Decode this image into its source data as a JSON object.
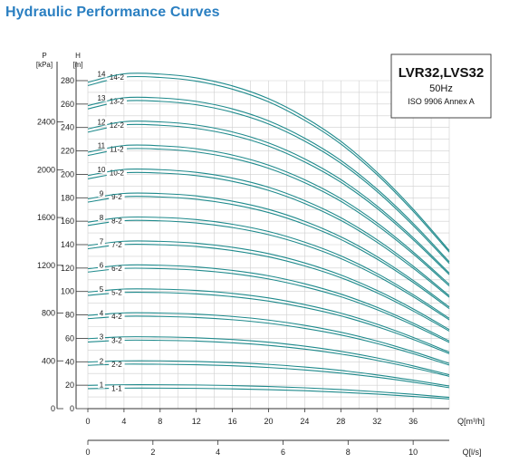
{
  "title": "Hydraulic Performance Curves",
  "legend": {
    "model": "LVR32,LVS32",
    "frequency": "50Hz",
    "standard": "ISO 9906 Annex A"
  },
  "colors": {
    "title": "#2a7fc1",
    "curve": "#1f8a8c",
    "grid": "#cfcfcf",
    "axis": "#333333"
  },
  "chart_data": {
    "type": "line",
    "title": "Hydraulic Performance Curves",
    "xlabel": "Q[m³/h]",
    "xlabel2": "Q[l/s]",
    "ylabel": "H [m]",
    "ylabel2": "P [kPa]",
    "xlim": [
      0,
      40
    ],
    "xticks": [
      0,
      4,
      8,
      12,
      16,
      20,
      24,
      28,
      32,
      36
    ],
    "x2lim": [
      0,
      11.11
    ],
    "x2ticks": [
      0,
      2,
      4,
      6,
      8,
      10
    ],
    "ylim": [
      0,
      280
    ],
    "yticks": [
      0,
      20,
      40,
      60,
      80,
      100,
      120,
      140,
      160,
      180,
      200,
      220,
      240,
      260,
      280
    ],
    "y2ticks": [
      0,
      400,
      800,
      1200,
      1600,
      2000,
      2400
    ],
    "grid": true,
    "x": [
      0,
      4,
      8,
      12,
      16,
      20,
      24,
      28,
      32,
      36,
      40
    ],
    "series": [
      {
        "name": "1-1",
        "values": [
          17.1,
          17.5,
          17.5,
          17.3,
          16.9,
          16.2,
          15.3,
          14.0,
          12.4,
          10.4,
          8.3
        ]
      },
      {
        "name": "1",
        "values": [
          19.9,
          20.4,
          20.4,
          20.2,
          19.7,
          18.9,
          17.8,
          16.3,
          14.4,
          12.2,
          9.6
        ]
      },
      {
        "name": "2-2",
        "values": [
          37.0,
          38.0,
          37.9,
          37.5,
          36.6,
          35.1,
          33.0,
          30.3,
          26.8,
          22.6,
          17.9
        ]
      },
      {
        "name": "2",
        "values": [
          39.8,
          40.8,
          40.8,
          40.3,
          39.3,
          37.8,
          35.5,
          32.6,
          28.8,
          24.3,
          19.3
        ]
      },
      {
        "name": "3-2",
        "values": [
          56.9,
          58.4,
          58.3,
          57.7,
          56.2,
          54.0,
          50.8,
          46.6,
          41.2,
          34.8,
          27.6
        ]
      },
      {
        "name": "3",
        "values": [
          59.7,
          61.3,
          61.2,
          60.5,
          59.0,
          56.7,
          53.3,
          48.9,
          43.3,
          36.5,
          28.9
        ]
      },
      {
        "name": "4-2",
        "values": [
          76.8,
          78.8,
          78.7,
          77.8,
          75.9,
          72.9,
          68.5,
          62.9,
          55.6,
          46.9,
          37.2
        ]
      },
      {
        "name": "4",
        "values": [
          79.6,
          81.7,
          81.6,
          80.7,
          78.7,
          75.6,
          71.1,
          65.2,
          57.7,
          48.7,
          38.6
        ]
      },
      {
        "name": "5-2",
        "values": [
          96.7,
          99.2,
          99.1,
          98.0,
          95.6,
          91.8,
          86.3,
          79.2,
          70.0,
          59.1,
          46.9
        ]
      },
      {
        "name": "5",
        "values": [
          99.5,
          102.1,
          102.0,
          100.9,
          98.4,
          94.5,
          88.8,
          81.5,
          72.1,
          60.8,
          48.2
        ]
      },
      {
        "name": "6-2",
        "values": [
          116.6,
          119.7,
          119.5,
          118.2,
          115.3,
          110.7,
          104.0,
          95.5,
          84.5,
          71.3,
          56.5
        ]
      },
      {
        "name": "6",
        "values": [
          119.4,
          122.5,
          122.4,
          121.0,
          118.0,
          113.4,
          106.6,
          97.8,
          86.5,
          73.0,
          57.8
        ]
      },
      {
        "name": "7-2",
        "values": [
          136.5,
          140.1,
          139.9,
          138.4,
          134.9,
          129.6,
          121.8,
          111.8,
          98.9,
          83.4,
          66.2
        ]
      },
      {
        "name": "7",
        "values": [
          139.3,
          142.9,
          142.8,
          141.2,
          137.7,
          132.3,
          124.4,
          114.1,
          100.9,
          85.2,
          67.5
        ]
      },
      {
        "name": "8-2",
        "values": [
          156.4,
          160.5,
          160.3,
          158.5,
          154.6,
          148.5,
          139.6,
          128.1,
          113.3,
          95.6,
          75.8
        ]
      },
      {
        "name": "8",
        "values": [
          159.2,
          163.3,
          163.2,
          161.4,
          157.4,
          151.2,
          142.1,
          130.4,
          115.4,
          97.3,
          77.1
        ]
      },
      {
        "name": "9-2",
        "values": [
          176.3,
          180.9,
          180.7,
          178.7,
          174.3,
          167.4,
          157.3,
          144.4,
          127.7,
          107.8,
          85.4
        ]
      },
      {
        "name": "9",
        "values": [
          179.1,
          183.7,
          183.6,
          181.6,
          177.1,
          170.1,
          159.9,
          146.7,
          129.8,
          109.5,
          86.8
        ]
      },
      {
        "name": "10-2",
        "values": [
          196.2,
          201.3,
          201.1,
          198.9,
          194.0,
          186.3,
          175.1,
          160.7,
          142.1,
          119.9,
          95.1
        ]
      },
      {
        "name": "10",
        "values": [
          199.0,
          204.2,
          204.0,
          201.7,
          196.8,
          189.0,
          177.6,
          163.0,
          144.2,
          121.7,
          96.4
        ]
      },
      {
        "name": "11-2",
        "values": [
          216.1,
          221.7,
          221.5,
          219.1,
          213.7,
          205.2,
          192.9,
          177.0,
          156.5,
          132.1,
          104.7
        ]
      },
      {
        "name": "11",
        "values": [
          218.9,
          224.6,
          224.4,
          221.9,
          216.5,
          207.9,
          195.4,
          179.3,
          158.6,
          133.8,
          106.1
        ]
      },
      {
        "name": "12-2",
        "values": [
          236.0,
          242.2,
          241.9,
          239.2,
          233.4,
          224.1,
          210.6,
          193.3,
          171.0,
          144.3,
          114.4
        ]
      },
      {
        "name": "12",
        "values": [
          238.8,
          245.0,
          244.8,
          242.1,
          236.2,
          226.8,
          213.2,
          195.6,
          173.0,
          146.0,
          115.7
        ]
      },
      {
        "name": "13-2",
        "values": [
          255.9,
          262.6,
          262.3,
          259.4,
          253.0,
          243.0,
          228.4,
          209.6,
          185.4,
          156.4,
          124.0
        ]
      },
      {
        "name": "13",
        "values": [
          258.7,
          265.4,
          265.2,
          262.3,
          255.9,
          245.7,
          230.9,
          211.9,
          187.4,
          158.2,
          125.4
        ]
      },
      {
        "name": "14-2",
        "values": [
          275.8,
          283.0,
          282.7,
          279.6,
          272.7,
          261.9,
          246.1,
          225.9,
          199.8,
          168.6,
          133.6
        ]
      },
      {
        "name": "14",
        "values": [
          278.6,
          285.8,
          285.6,
          282.4,
          275.5,
          264.6,
          248.7,
          228.2,
          201.8,
          170.4,
          135.0
        ]
      }
    ]
  }
}
